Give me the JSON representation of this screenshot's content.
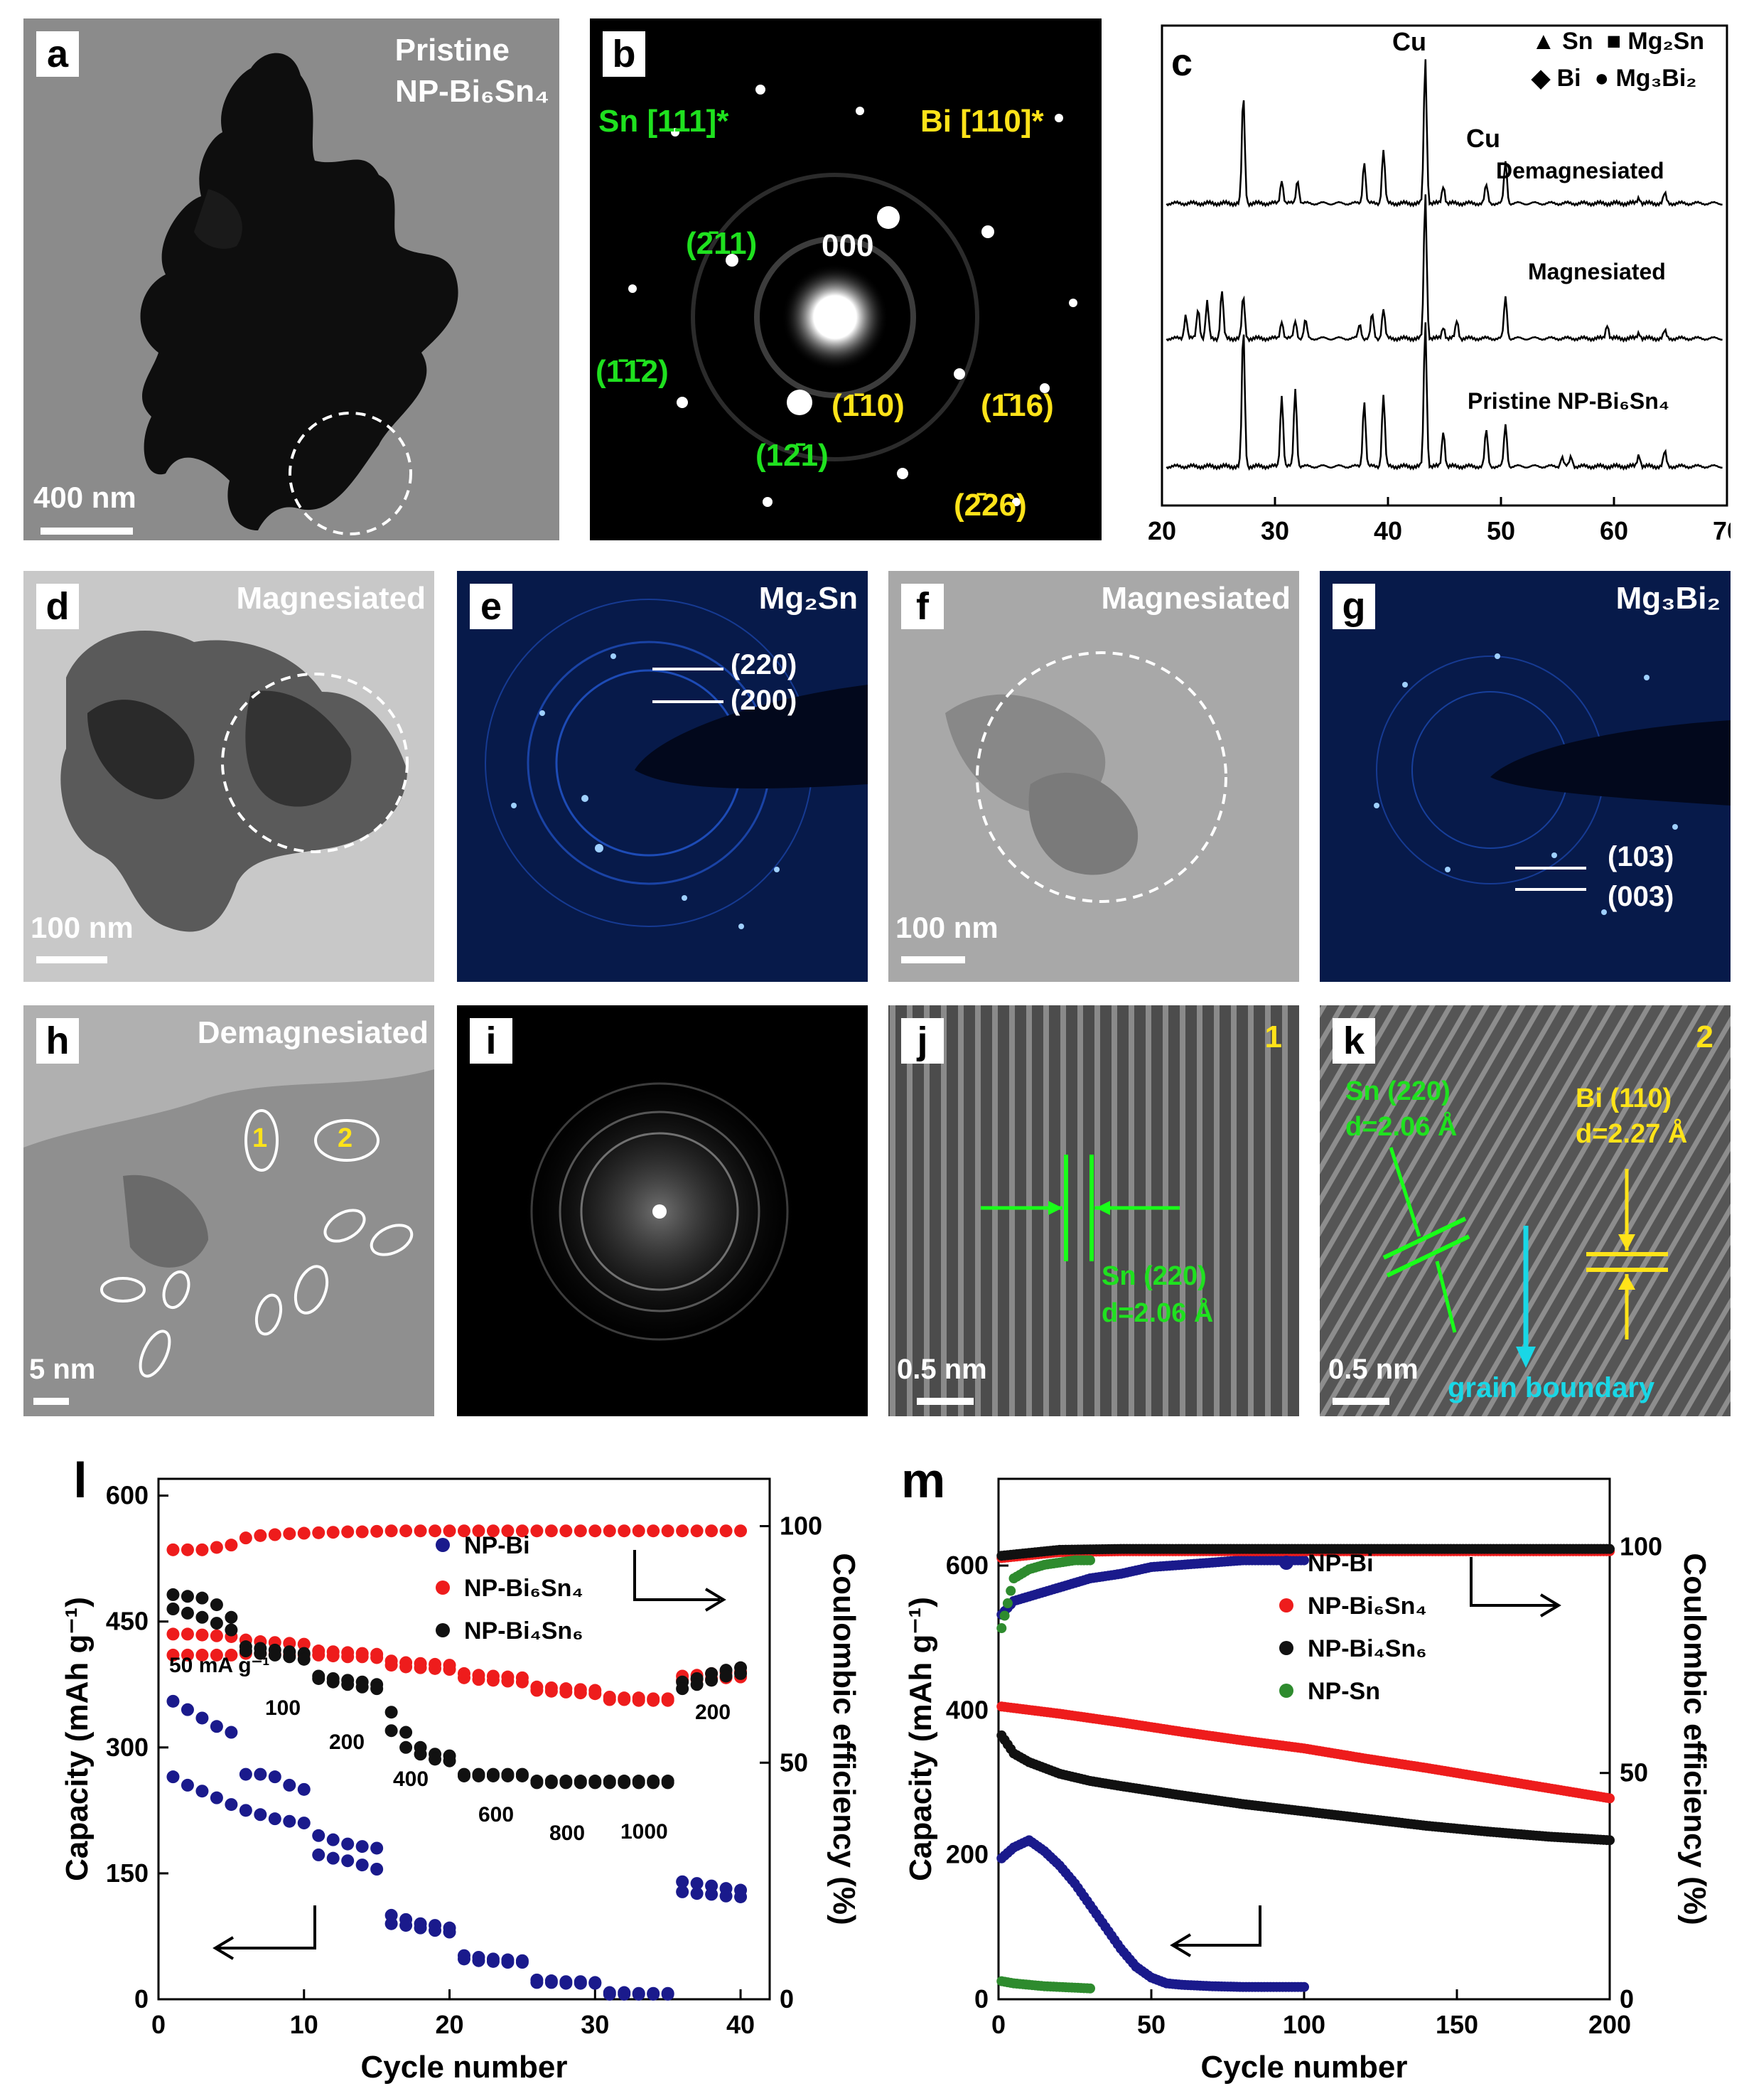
{
  "panels": {
    "a": {
      "label": "a",
      "title_line1": "Pristine",
      "title_line2": "NP-Bi₆Sn₄",
      "scalebar": "400 nm"
    },
    "b": {
      "label": "b",
      "zone_sn": "Sn [111]*",
      "zone_bi": "Bi [110]*",
      "center": "000",
      "sn_spots": [
        "(2̄11)",
        "(1̄1̄2)",
        "(12̄1)"
      ],
      "bi_spots": [
        "(1̄10)",
        "(1̄16)",
        "(2̄26)"
      ]
    },
    "c": {
      "label": "c",
      "legend": [
        "▲ Sn",
        "■ Mg₂Sn",
        "◆ Bi",
        "● Mg₃Bi₂"
      ],
      "peak_labels": [
        "Cu",
        "Cu"
      ],
      "traces": [
        "Demagnesiated",
        "Magnesiated",
        "Pristine NP-Bi₆Sn₄"
      ],
      "x_ticks": [
        "20",
        "30",
        "40",
        "50",
        "60",
        "70"
      ]
    },
    "d": {
      "label": "d",
      "title": "Magnesiated",
      "scalebar": "100 nm"
    },
    "e": {
      "label": "e",
      "title": "Mg₂Sn",
      "rings": [
        "(220)",
        "(200)"
      ]
    },
    "f": {
      "label": "f",
      "title": "Magnesiated",
      "scalebar": "100 nm"
    },
    "g": {
      "label": "g",
      "title": "Mg₃Bi₂",
      "rings": [
        "(103)",
        "(003)"
      ]
    },
    "h": {
      "label": "h",
      "title": "Demagnesiated",
      "scalebar": "5 nm",
      "regions": [
        "1",
        "2"
      ]
    },
    "i": {
      "label": "i"
    },
    "j": {
      "label": "j",
      "region": "1",
      "fringe": "Sn (220)",
      "dspacing": "d=2.06 Å",
      "scalebar": "0.5 nm"
    },
    "k": {
      "label": "k",
      "region": "2",
      "fringe_sn": "Sn (220)",
      "d_sn": "d=2.06 Å",
      "fringe_bi": "Bi (110)",
      "d_bi": "d=2.27 Å",
      "scalebar": "0.5 nm",
      "boundary": "grain boundary"
    }
  },
  "chart_l": {
    "label": "l",
    "xlabel": "Cycle number",
    "ylabel_left": "Capacity (mAh g⁻¹)",
    "ylabel_right": "Coulombic efficiency (%)",
    "rate_labels": [
      "50 mA g⁻¹",
      "100",
      "200",
      "400",
      "600",
      "800",
      "1000",
      "200"
    ],
    "x_ticks": [
      "0",
      "10",
      "20",
      "30",
      "40"
    ],
    "y_ticks": [
      "0",
      "150",
      "300",
      "450",
      "600"
    ],
    "y2_ticks": [
      "0",
      "50",
      "100"
    ]
  },
  "chart_m": {
    "label": "m",
    "xlabel": "Cycle number",
    "ylabel_left": "Capacity (mAh g⁻¹)",
    "ylabel_right": "Coulombic efficiency (%)",
    "x_ticks": [
      "0",
      "50",
      "100",
      "150",
      "200"
    ],
    "y_ticks": [
      "0",
      "200",
      "400",
      "600"
    ],
    "y2_ticks": [
      "0",
      "50",
      "100"
    ]
  },
  "chart_data": [
    {
      "type": "line",
      "panel": "c",
      "xlabel": "",
      "ylabel": "",
      "xlim": [
        20,
        70
      ],
      "series": [
        {
          "name": "Demagnesiated",
          "peaks": [
            [
              27.2,
              0.9
            ],
            [
              30.6,
              0.2
            ],
            [
              32.0,
              0.2
            ],
            [
              37.9,
              0.35
            ],
            [
              39.6,
              0.45
            ],
            [
              43.3,
              1.2
            ],
            [
              44.9,
              0.15
            ],
            [
              48.7,
              0.15
            ],
            [
              50.4,
              0.35
            ],
            [
              62.2,
              0.05
            ],
            [
              64.5,
              0.08
            ]
          ]
        },
        {
          "name": "Magnesiated",
          "peaks": [
            [
              22.1,
              0.2
            ],
            [
              23.2,
              0.25
            ],
            [
              24.0,
              0.3
            ],
            [
              25.3,
              0.4
            ],
            [
              27.2,
              0.35
            ],
            [
              30.6,
              0.15
            ],
            [
              31.8,
              0.15
            ],
            [
              32.7,
              0.15
            ],
            [
              37.5,
              0.12
            ],
            [
              38.6,
              0.2
            ],
            [
              39.6,
              0.25
            ],
            [
              43.3,
              1.2
            ],
            [
              44.9,
              0.1
            ],
            [
              46.1,
              0.15
            ],
            [
              50.4,
              0.35
            ],
            [
              59.4,
              0.12
            ],
            [
              62.2,
              0.05
            ],
            [
              64.5,
              0.06
            ]
          ]
        },
        {
          "name": "Pristine NP-Bi₆Sn₄",
          "peaks": [
            [
              27.2,
              1.15
            ],
            [
              30.6,
              0.6
            ],
            [
              31.8,
              0.65
            ],
            [
              37.9,
              0.55
            ],
            [
              39.6,
              0.6
            ],
            [
              43.3,
              1.2
            ],
            [
              44.9,
              0.3
            ],
            [
              48.7,
              0.3
            ],
            [
              50.4,
              0.35
            ],
            [
              55.4,
              0.08
            ],
            [
              56.2,
              0.08
            ],
            [
              62.2,
              0.1
            ],
            [
              64.5,
              0.12
            ]
          ]
        }
      ]
    },
    {
      "type": "scatter",
      "panel": "l",
      "xlim": [
        0,
        42
      ],
      "ylim": [
        0,
        620
      ],
      "y2lim": [
        0,
        110
      ],
      "series": [
        {
          "name": "NP-Bi",
          "color": "#1a1a8c",
          "axis": "left",
          "x": [
            1,
            2,
            3,
            4,
            5,
            6,
            7,
            8,
            9,
            10,
            11,
            12,
            13,
            14,
            15,
            16,
            17,
            18,
            19,
            20,
            21,
            22,
            23,
            24,
            25,
            26,
            27,
            28,
            29,
            30,
            31,
            32,
            33,
            34,
            35,
            36,
            37,
            38,
            39,
            40
          ],
          "charge": [
            355,
            345,
            335,
            325,
            318,
            268,
            268,
            265,
            255,
            250,
            195,
            190,
            185,
            182,
            180,
            100,
            95,
            90,
            88,
            85,
            52,
            50,
            48,
            47,
            46,
            23,
            22,
            21,
            21,
            20,
            8,
            8,
            7,
            7,
            7,
            140,
            138,
            135,
            132,
            130
          ],
          "discharge": [
            265,
            255,
            248,
            240,
            232,
            225,
            220,
            215,
            212,
            210,
            172,
            168,
            165,
            160,
            155,
            90,
            88,
            85,
            82,
            80,
            48,
            46,
            45,
            44,
            44,
            20,
            20,
            19,
            19,
            19,
            6,
            6,
            6,
            6,
            6,
            128,
            126,
            125,
            123,
            122
          ]
        },
        {
          "name": "NP-Bi₆Sn₄",
          "color": "#ee1c1c",
          "axis": "left",
          "x": [
            1,
            2,
            3,
            4,
            5,
            6,
            7,
            8,
            9,
            10,
            11,
            12,
            13,
            14,
            15,
            16,
            17,
            18,
            19,
            20,
            21,
            22,
            23,
            24,
            25,
            26,
            27,
            28,
            29,
            30,
            31,
            32,
            33,
            34,
            35,
            36,
            37,
            38,
            39,
            40
          ],
          "charge": [
            435,
            435,
            434,
            433,
            432,
            428,
            426,
            425,
            424,
            423,
            415,
            414,
            413,
            412,
            411,
            403,
            401,
            400,
            399,
            398,
            388,
            386,
            385,
            384,
            383,
            372,
            371,
            370,
            369,
            368,
            360,
            359,
            359,
            358,
            358,
            385,
            386,
            388,
            389,
            390
          ],
          "discharge": [
            410,
            410,
            410,
            410,
            410,
            412,
            412,
            411,
            410,
            410,
            410,
            409,
            408,
            408,
            407,
            398,
            396,
            395,
            394,
            393,
            383,
            381,
            380,
            379,
            378,
            368,
            367,
            366,
            365,
            364,
            357,
            357,
            356,
            356,
            356,
            380,
            381,
            382,
            383,
            384
          ]
        },
        {
          "name": "NP-Bi₄Sn₆",
          "color": "#111111",
          "axis": "left",
          "x": [
            1,
            2,
            3,
            4,
            5,
            6,
            7,
            8,
            9,
            10,
            11,
            12,
            13,
            14,
            15,
            16,
            17,
            18,
            19,
            20,
            21,
            22,
            23,
            24,
            25,
            26,
            27,
            28,
            29,
            30,
            31,
            32,
            33,
            34,
            35,
            36,
            37,
            38,
            39,
            40
          ],
          "charge": [
            482,
            480,
            478,
            470,
            455,
            420,
            418,
            416,
            414,
            412,
            385,
            382,
            380,
            378,
            375,
            342,
            318,
            300,
            292,
            290,
            268,
            268,
            268,
            268,
            268,
            260,
            260,
            260,
            260,
            260,
            260,
            260,
            260,
            260,
            260,
            378,
            382,
            388,
            392,
            395
          ],
          "discharge": [
            465,
            460,
            455,
            448,
            440,
            415,
            412,
            410,
            408,
            405,
            382,
            378,
            375,
            372,
            370,
            320,
            300,
            292,
            286,
            284,
            266,
            266,
            266,
            266,
            266,
            258,
            258,
            258,
            258,
            258,
            258,
            258,
            258,
            258,
            258,
            370,
            375,
            380,
            385,
            388
          ]
        },
        {
          "name": "NP-Bi₆Sn₄ CE",
          "color": "#ee1c1c",
          "axis": "right",
          "x": [
            1,
            2,
            3,
            4,
            5,
            6,
            7,
            8,
            9,
            10,
            11,
            12,
            13,
            14,
            15,
            16,
            17,
            18,
            19,
            20,
            21,
            22,
            23,
            24,
            25,
            26,
            27,
            28,
            29,
            30,
            31,
            32,
            33,
            34,
            35,
            36,
            37,
            38,
            39,
            40
          ],
          "values": [
            95,
            95,
            95,
            95.5,
            96,
            97.5,
            98,
            98.2,
            98.4,
            98.5,
            98.6,
            98.7,
            98.8,
            98.8,
            98.9,
            99,
            99,
            99,
            99,
            99,
            99,
            99,
            99,
            99,
            99,
            99,
            99,
            99,
            99,
            99,
            99,
            99,
            99,
            99,
            99,
            99,
            99,
            99,
            99,
            99
          ]
        }
      ]
    },
    {
      "type": "line",
      "panel": "m",
      "xlim": [
        0,
        200
      ],
      "ylim": [
        0,
        720
      ],
      "y2lim": [
        0,
        115
      ],
      "series": [
        {
          "name": "NP-Bi",
          "color": "#1a1a8c",
          "axis": "left",
          "x": [
            1,
            5,
            10,
            15,
            20,
            25,
            30,
            35,
            40,
            45,
            50,
            55,
            60,
            70,
            80,
            90,
            100
          ],
          "values": [
            195,
            210,
            220,
            205,
            185,
            160,
            130,
            100,
            70,
            45,
            30,
            22,
            20,
            18,
            17,
            17,
            17
          ]
        },
        {
          "name": "NP-Bi₆Sn₄",
          "color": "#ee1c1c",
          "axis": "left",
          "x": [
            1,
            20,
            40,
            60,
            80,
            100,
            120,
            140,
            160,
            180,
            200
          ],
          "values": [
            405,
            395,
            383,
            370,
            358,
            347,
            333,
            320,
            306,
            292,
            278
          ]
        },
        {
          "name": "NP-Bi₄Sn₆",
          "color": "#111111",
          "axis": "left",
          "x": [
            1,
            5,
            10,
            15,
            20,
            30,
            40,
            60,
            80,
            100,
            120,
            140,
            160,
            180,
            200
          ],
          "values": [
            365,
            340,
            328,
            320,
            312,
            302,
            295,
            282,
            270,
            260,
            250,
            240,
            232,
            225,
            220
          ]
        },
        {
          "name": "NP-Sn",
          "color": "#2e8b2e",
          "axis": "left",
          "x": [
            1,
            5,
            10,
            15,
            20,
            25,
            30
          ],
          "values": [
            25,
            22,
            20,
            18,
            17,
            16,
            15
          ]
        },
        {
          "name": "NP-Bi CE",
          "color": "#1a1a8c",
          "axis": "right",
          "x": [
            1,
            5,
            10,
            20,
            30,
            40,
            50,
            60,
            70,
            80,
            90,
            100
          ],
          "values": [
            85,
            88,
            89,
            91,
            93,
            94,
            95.5,
            96,
            96.5,
            97,
            97,
            97
          ]
        },
        {
          "name": "NP-Bi₆Sn₄ CE",
          "color": "#ee1c1c",
          "axis": "right",
          "x": [
            1,
            20,
            40,
            60,
            80,
            100,
            120,
            140,
            160,
            180,
            200
          ],
          "values": [
            97.5,
            98.8,
            99,
            99,
            99,
            99,
            99,
            99,
            99,
            99,
            99
          ]
        },
        {
          "name": "NP-Bi₄Sn₆ CE",
          "color": "#111111",
          "axis": "right",
          "x": [
            1,
            20,
            40,
            60,
            80,
            100,
            120,
            140,
            160,
            180,
            200
          ],
          "values": [
            98,
            99.3,
            99.5,
            99.5,
            99.5,
            99.5,
            99.5,
            99.5,
            99.5,
            99.5,
            99.5
          ]
        },
        {
          "name": "NP-Sn CE",
          "color": "#2e8b2e",
          "axis": "right",
          "x": [
            1,
            5,
            10,
            15,
            20,
            25,
            30
          ],
          "values": [
            82,
            93,
            95,
            96,
            96.5,
            97,
            97
          ]
        }
      ]
    }
  ]
}
